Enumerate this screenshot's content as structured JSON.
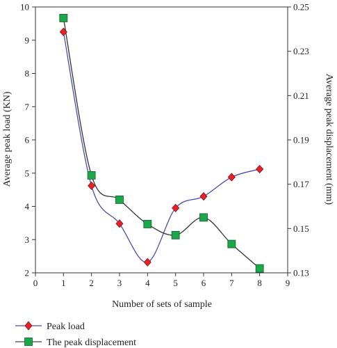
{
  "chart_data": {
    "type": "line",
    "xlabel": "Number of sets of sample",
    "ylabel_left": "Average peak load (KN)",
    "ylabel_right": "Average peak displacement (mm)",
    "xlim": [
      0,
      9
    ],
    "ylim_left": [
      2,
      10
    ],
    "ylim_right": [
      0.13,
      0.25
    ],
    "x_ticks": [
      "0",
      "1",
      "2",
      "3",
      "4",
      "5",
      "6",
      "7",
      "8",
      "9"
    ],
    "y_ticks_left": [
      "2",
      "3",
      "4",
      "5",
      "6",
      "7",
      "8",
      "9",
      "10"
    ],
    "y_ticks_right": [
      "0.13",
      "0.15",
      "0.17",
      "0.19",
      "0.21",
      "0.23",
      "0.25"
    ],
    "grid": false,
    "legend_position": "bottom-left",
    "series": [
      {
        "name": "Peak load",
        "axis": "left",
        "marker": "diamond",
        "color": "#e8202a",
        "x": [
          1,
          2,
          3,
          4,
          5,
          6,
          7,
          8
        ],
        "values": [
          9.25,
          4.62,
          3.48,
          2.32,
          3.95,
          4.3,
          4.88,
          5.12
        ]
      },
      {
        "name": "The peak displacement",
        "axis": "right",
        "marker": "square",
        "color": "#1aa84a",
        "x": [
          1,
          2,
          3,
          4,
          5,
          6,
          7,
          8
        ],
        "values": [
          0.245,
          0.174,
          0.163,
          0.152,
          0.147,
          0.155,
          0.143,
          0.132
        ]
      }
    ]
  }
}
